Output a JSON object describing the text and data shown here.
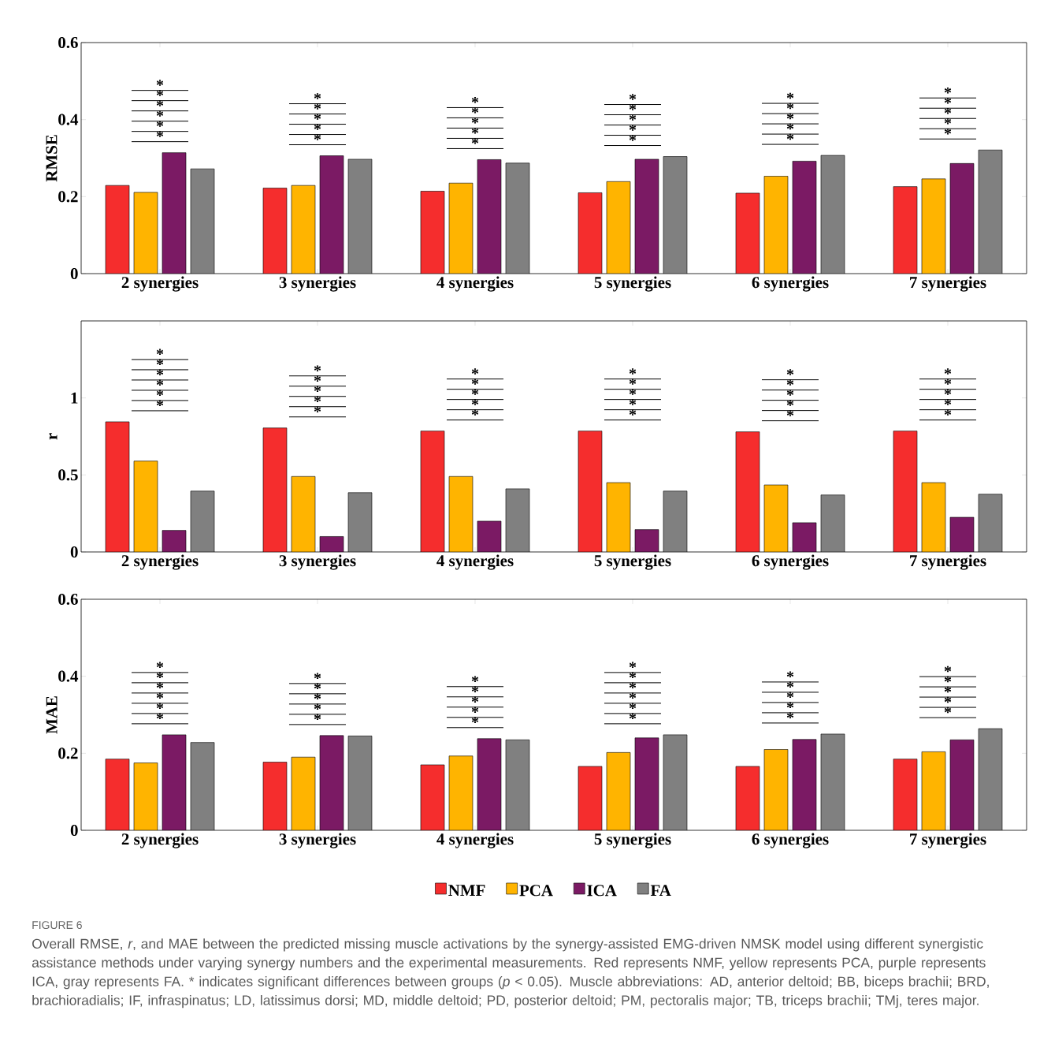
{
  "chart_data": [
    {
      "type": "bar",
      "ylabel": "RMSE",
      "categories": [
        "2 synergies",
        "3 synergies",
        "4 synergies",
        "5 synergies",
        "6 synergies",
        "7 synergies"
      ],
      "ylim": [
        0,
        0.6
      ],
      "yticks": [
        0,
        0.2,
        0.4,
        0.6
      ],
      "series": [
        {
          "color": "#f52d2d",
          "values": [
            0.229,
            0.222,
            0.214,
            0.21,
            0.209,
            0.226
          ]
        },
        {
          "color": "#ffb400",
          "values": [
            0.211,
            0.229,
            0.235,
            0.239,
            0.253,
            0.246
          ]
        },
        {
          "color": "#7b1a64",
          "values": [
            0.314,
            0.306,
            0.296,
            0.297,
            0.292,
            0.286
          ]
        },
        {
          "color": "#808080",
          "values": [
            0.272,
            0.297,
            0.287,
            0.304,
            0.307,
            0.321
          ]
        }
      ],
      "annotations": [
        "*",
        "*",
        "*",
        "*",
        "*",
        "*",
        "*",
        "*",
        "*",
        "*",
        "*",
        "*",
        "*",
        "*",
        "*",
        "*",
        "*",
        "*",
        "*",
        "*",
        "*",
        "*",
        "*",
        "*",
        "*",
        "*",
        "*",
        "*",
        "*",
        "*",
        "*"
      ]
    },
    {
      "type": "bar",
      "ylabel": "r",
      "categories": [
        "2 synergies",
        "3 synergies",
        "4 synergies",
        "5 synergies",
        "6 synergies",
        "7 synergies"
      ],
      "ylim": [
        0,
        1.5
      ],
      "yticks": [
        0,
        0.5,
        1
      ],
      "series": [
        {
          "color": "#f52d2d",
          "values": [
            0.845,
            0.805,
            0.785,
            0.785,
            0.78,
            0.785
          ]
        },
        {
          "color": "#ffb400",
          "values": [
            0.59,
            0.49,
            0.49,
            0.45,
            0.435,
            0.45
          ]
        },
        {
          "color": "#7b1a64",
          "values": [
            0.14,
            0.1,
            0.2,
            0.145,
            0.19,
            0.225
          ]
        },
        {
          "color": "#808080",
          "values": [
            0.395,
            0.385,
            0.41,
            0.395,
            0.37,
            0.375
          ]
        }
      ],
      "annotations": [
        "*",
        "*",
        "*",
        "*",
        "*",
        "*",
        "*",
        "*",
        "*",
        "*",
        "*",
        "*",
        "*",
        "*",
        "*",
        "*",
        "*",
        "*",
        "*",
        "*",
        "*",
        "*",
        "*",
        "*",
        "*",
        "*",
        "*",
        "*",
        "*",
        "*",
        "*"
      ]
    },
    {
      "type": "bar",
      "ylabel": "MAE",
      "categories": [
        "2 synergies",
        "3 synergies",
        "4 synergies",
        "5 synergies",
        "6 synergies",
        "7 synergies"
      ],
      "ylim": [
        0,
        0.6
      ],
      "yticks": [
        0,
        0.2,
        0.4,
        0.6
      ],
      "legend": "bottom",
      "series": [
        {
          "name": "NMF",
          "color": "#f52d2d",
          "values": [
            0.185,
            0.177,
            0.17,
            0.166,
            0.166,
            0.185
          ]
        },
        {
          "name": "PCA",
          "color": "#ffb400",
          "values": [
            0.175,
            0.19,
            0.193,
            0.202,
            0.21,
            0.204
          ]
        },
        {
          "name": "ICA",
          "color": "#7b1a64",
          "values": [
            0.248,
            0.246,
            0.238,
            0.24,
            0.236,
            0.235
          ]
        },
        {
          "name": "FA",
          "color": "#808080",
          "values": [
            0.228,
            0.245,
            0.235,
            0.248,
            0.25,
            0.264
          ]
        }
      ],
      "annotations": [
        "FIGURE 6",
        "Overall RMSE, *r*, and MAE between the predicted missing muscle activations by the synergy-assisted EMG-driven NMSK model using different synergistic assistance methods under varying synergy numbers and the experimental measurements. Red represents NMF, yellow represents PCA, purple represents ICA, gray represents FA. * indicates significant differences between groups (*p* < 0.05). Muscle abbreviations: AD, anterior deltoid; BB, biceps brachii; BRD, brachioradialis; IF, infraspinatus; LD, latissimus dorsi; MD, middle deltoid; PD, posterior deltoid; PM, pectoralis major; TB, triceps brachii; TMj, teres major.",
        "*",
        "*",
        "*",
        "*",
        "*",
        "*",
        "*",
        "*",
        "*",
        "*",
        "*",
        "*",
        "*",
        "*",
        "*",
        "*",
        "*",
        "*",
        "*",
        "*",
        "*",
        "*",
        "*",
        "*",
        "*",
        "*",
        "*",
        "*",
        "*",
        "*",
        "*",
        "*"
      ]
    }
  ]
}
